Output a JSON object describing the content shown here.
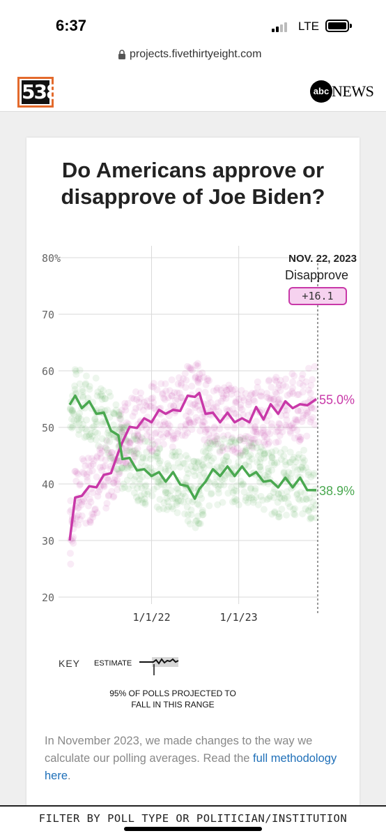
{
  "status": {
    "time": "6:37",
    "network": "LTE"
  },
  "browser": {
    "url": "projects.fivethirtyeight.com"
  },
  "header": {
    "logo_text": "538",
    "partner_icon": "abc",
    "partner_text": "NEWS"
  },
  "card": {
    "title_line1": "Do Americans approve or",
    "title_line2": "disapprove of Joe Biden?"
  },
  "annotation": {
    "date": "NOV. 22, 2023",
    "label": "Disapprove",
    "margin": "+16.1"
  },
  "key": {
    "label": "KEY",
    "estimate_label": "ESTIMATE",
    "range_note_line1": "95% OF POLLS PROJECTED TO",
    "range_note_line2": "FALL IN THIS RANGE"
  },
  "methodology": {
    "text": "In November 2023, we made changes to the way we calculate our polling averages. Read the ",
    "link": "full methodology here",
    "tail": "."
  },
  "filter": {
    "label": "FILTER BY POLL TYPE OR POLITICIAN/INSTITUTION"
  },
  "colors": {
    "disapprove": "#c838a8",
    "approve": "#4aa850",
    "accent538": "#e36a2c"
  },
  "chart_data": {
    "type": "line",
    "x_tick_labels": [
      "1/1/22",
      "1/1/23"
    ],
    "y_ticks": [
      20,
      30,
      40,
      50,
      60,
      70,
      80
    ],
    "y_tick_labels": [
      "20",
      "30",
      "40",
      "50",
      "60",
      "70",
      "80%"
    ],
    "ylim": [
      20,
      80
    ],
    "grid": true,
    "series": [
      {
        "name": "Disapprove",
        "color": "#c838a8",
        "end_label": "55.0%",
        "x": [
          "2021-01-23",
          "2021-02-15",
          "2021-03-15",
          "2021-04-15",
          "2021-05-15",
          "2021-06-15",
          "2021-07-15",
          "2021-08-15",
          "2021-09-01",
          "2021-10-01",
          "2021-11-01",
          "2021-12-01",
          "2022-01-01",
          "2022-02-01",
          "2022-03-01",
          "2022-04-01",
          "2022-05-01",
          "2022-06-01",
          "2022-07-01",
          "2022-07-20",
          "2022-08-15",
          "2022-09-15",
          "2022-10-15",
          "2022-11-15",
          "2022-12-15",
          "2023-01-15",
          "2023-02-15",
          "2023-03-15",
          "2023-04-15",
          "2023-05-15",
          "2023-06-15",
          "2023-07-15",
          "2023-08-15",
          "2023-09-15",
          "2023-10-15",
          "2023-11-22"
        ],
        "values": [
          30,
          37,
          38.5,
          39,
          40,
          41,
          42.5,
          45,
          48,
          49.5,
          50.5,
          51,
          51.5,
          52.5,
          53,
          52.5,
          53.5,
          55,
          56,
          55.5,
          53,
          52,
          51.5,
          52,
          51.5,
          51,
          51.5,
          53,
          52,
          53.5,
          53,
          54,
          54,
          53.5,
          54.5,
          55
        ]
      },
      {
        "name": "Approve",
        "color": "#4aa850",
        "end_label": "38.9%",
        "x": [
          "2021-01-23",
          "2021-02-15",
          "2021-03-15",
          "2021-04-15",
          "2021-05-15",
          "2021-06-15",
          "2021-07-15",
          "2021-08-15",
          "2021-09-01",
          "2021-10-01",
          "2021-11-01",
          "2021-12-01",
          "2022-01-01",
          "2022-02-01",
          "2022-03-01",
          "2022-04-01",
          "2022-05-01",
          "2022-06-01",
          "2022-07-01",
          "2022-07-20",
          "2022-08-15",
          "2022-09-15",
          "2022-10-15",
          "2022-11-15",
          "2022-12-15",
          "2023-01-15",
          "2023-02-15",
          "2023-03-15",
          "2023-04-15",
          "2023-05-15",
          "2023-06-15",
          "2023-07-15",
          "2023-08-15",
          "2023-09-15",
          "2023-10-15",
          "2023-11-22"
        ],
        "values": [
          54,
          55,
          54,
          54,
          53,
          52,
          50,
          48,
          45,
          44,
          43,
          42,
          42,
          41.5,
          41,
          41.5,
          40.5,
          39,
          38,
          38.5,
          41,
          42,
          42,
          42.5,
          42,
          42.5,
          42,
          41.5,
          41,
          40,
          40,
          40.5,
          40,
          40.5,
          39.5,
          38.9
        ]
      }
    ]
  }
}
